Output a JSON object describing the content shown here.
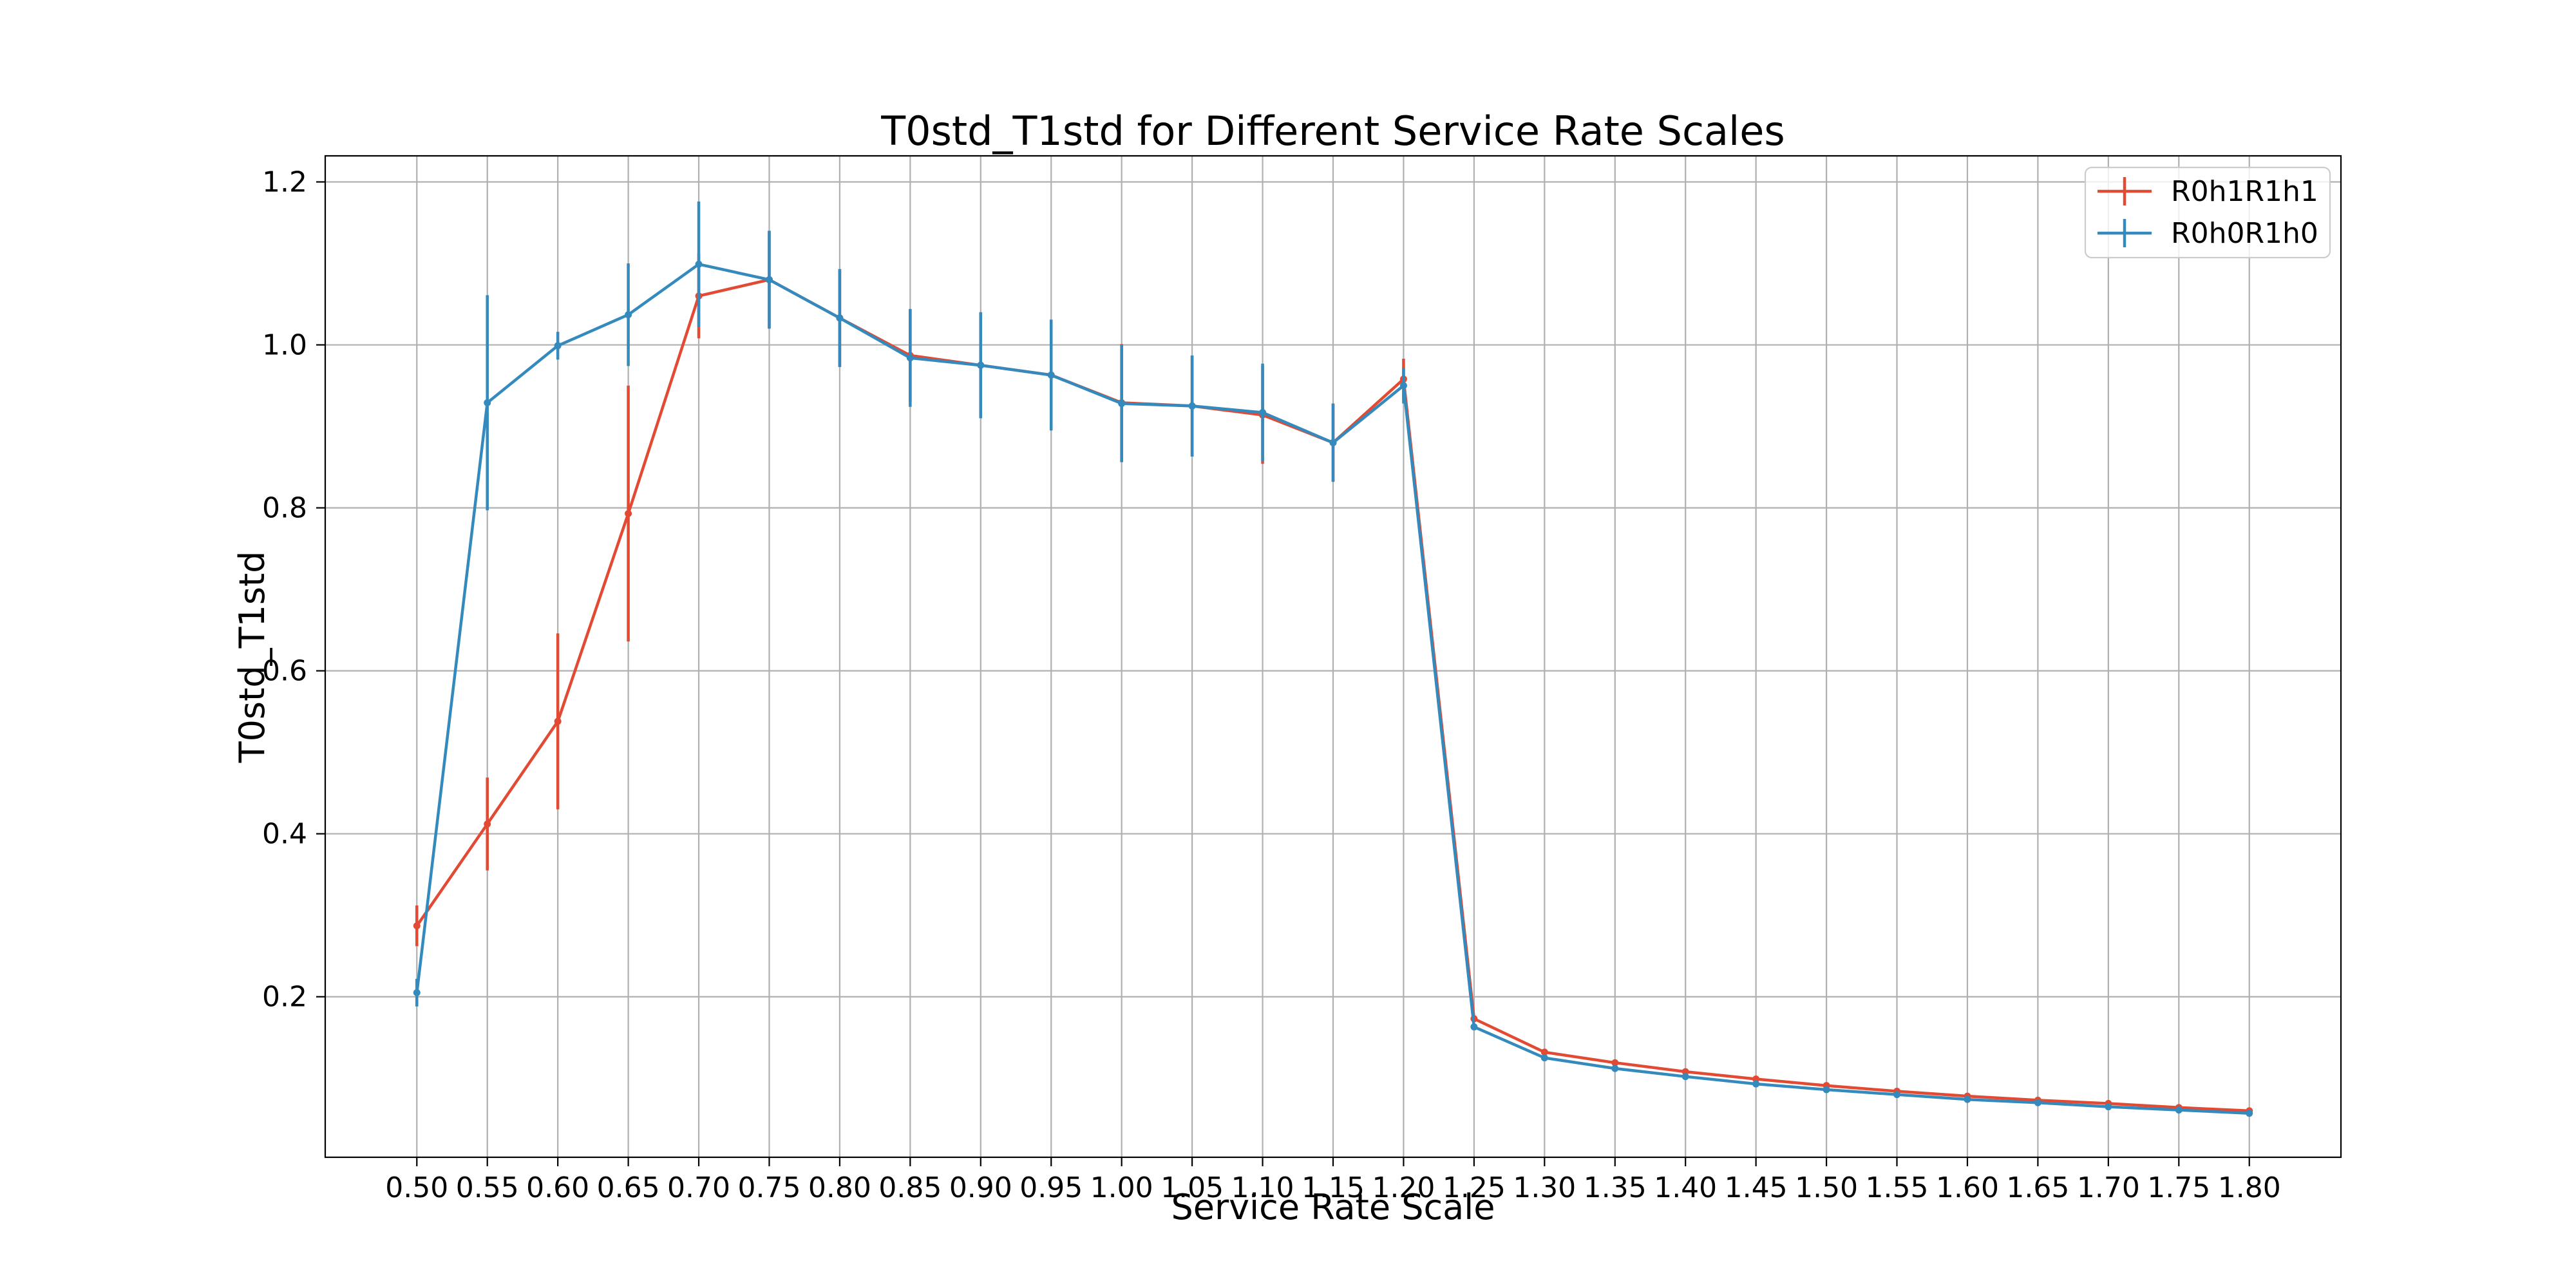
{
  "chart_data": {
    "type": "line",
    "title": "T0std_T1std for Different Service Rate Scales",
    "xlabel": "Service Rate Scale",
    "ylabel": "T0std_T1std",
    "x": [
      0.5,
      0.55,
      0.6,
      0.65,
      0.7,
      0.75,
      0.8,
      0.85,
      0.9,
      0.95,
      1.0,
      1.05,
      1.1,
      1.15,
      1.2,
      1.25,
      1.3,
      1.35,
      1.4,
      1.45,
      1.5,
      1.55,
      1.6,
      1.65,
      1.7,
      1.75,
      1.8
    ],
    "x_tick_labels": [
      "0.50",
      "0.55",
      "0.60",
      "0.65",
      "0.70",
      "0.75",
      "0.80",
      "0.85",
      "0.90",
      "0.95",
      "1.00",
      "1.05",
      "1.10",
      "1.15",
      "1.20",
      "1.25",
      "1.30",
      "1.35",
      "1.40",
      "1.45",
      "1.50",
      "1.55",
      "1.60",
      "1.65",
      "1.70",
      "1.75",
      "1.80"
    ],
    "xlim": [
      0.435,
      1.865
    ],
    "ylim": [
      0.003,
      1.232
    ],
    "y_ticks": [
      0.2,
      0.4,
      0.6,
      0.8,
      1.0,
      1.2
    ],
    "y_tick_labels": [
      "0.2",
      "0.4",
      "0.6",
      "0.8",
      "1.0",
      "1.2"
    ],
    "grid": true,
    "legend_position": "top-right",
    "series": [
      {
        "name": "R0h1R1h1",
        "color": "#e24a33",
        "values": [
          0.287,
          0.412,
          0.538,
          0.793,
          1.06,
          1.08,
          1.033,
          0.987,
          0.975,
          0.963,
          0.929,
          0.925,
          0.914,
          0.88,
          0.958,
          0.173,
          0.132,
          0.119,
          0.108,
          0.099,
          0.091,
          0.084,
          0.078,
          0.073,
          0.069,
          0.064,
          0.06
        ],
        "errors": [
          0.025,
          0.057,
          0.108,
          0.157,
          0.052,
          0.06,
          0.06,
          0.057,
          0.065,
          0.068,
          0.072,
          0.062,
          0.06,
          0.048,
          0.025,
          0.004,
          0.003,
          0.003,
          0.003,
          0.002,
          0.002,
          0.002,
          0.002,
          0.002,
          0.002,
          0.002,
          0.002
        ]
      },
      {
        "name": "R0h0R1h0",
        "color": "#348abd",
        "values": [
          0.205,
          0.929,
          0.999,
          1.037,
          1.099,
          1.08,
          1.033,
          0.984,
          0.975,
          0.963,
          0.928,
          0.925,
          0.917,
          0.88,
          0.95,
          0.163,
          0.125,
          0.112,
          0.102,
          0.093,
          0.086,
          0.08,
          0.074,
          0.07,
          0.065,
          0.061,
          0.057
        ],
        "errors": [
          0.017,
          0.132,
          0.017,
          0.063,
          0.077,
          0.06,
          0.06,
          0.06,
          0.065,
          0.068,
          0.072,
          0.062,
          0.06,
          0.048,
          0.022,
          0.004,
          0.003,
          0.003,
          0.003,
          0.002,
          0.002,
          0.002,
          0.002,
          0.002,
          0.002,
          0.002,
          0.002
        ]
      }
    ]
  }
}
